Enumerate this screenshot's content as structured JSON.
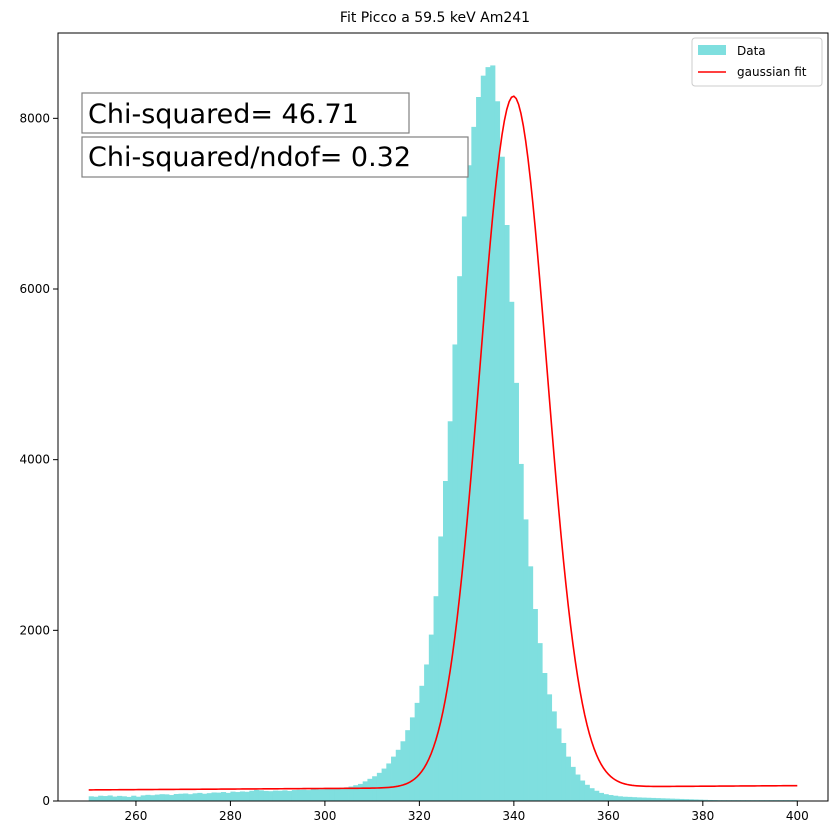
{
  "chart_data": {
    "type": "bar",
    "title": "Fit Picco a 59.5 keV Am241",
    "xlabel": "",
    "ylabel": "",
    "xlim": [
      243.5,
      406.5
    ],
    "ylim": [
      0,
      9000
    ],
    "xticks": [
      260,
      280,
      300,
      320,
      340,
      360,
      380,
      400
    ],
    "yticks": [
      0,
      2000,
      4000,
      6000,
      8000
    ],
    "grid": false,
    "legend_position": "top-right",
    "histogram": {
      "name": "Data",
      "color": "#7fdfdf",
      "bin_start": 250,
      "bin_width": 1,
      "counts": [
        55,
        50,
        62,
        58,
        65,
        52,
        60,
        55,
        48,
        62,
        50,
        66,
        72,
        68,
        75,
        80,
        78,
        70,
        82,
        85,
        88,
        80,
        90,
        95,
        85,
        92,
        100,
        98,
        105,
        95,
        110,
        105,
        112,
        108,
        120,
        130,
        125,
        118,
        115,
        122,
        120,
        125,
        118,
        128,
        130,
        132,
        128,
        140,
        135,
        138,
        142,
        145,
        150,
        155,
        160,
        170,
        185,
        200,
        230,
        260,
        290,
        330,
        380,
        440,
        520,
        600,
        700,
        830,
        980,
        1150,
        1350,
        1600,
        1950,
        2400,
        3100,
        3750,
        4450,
        5350,
        6150,
        6850,
        7450,
        7900,
        8250,
        8500,
        8600,
        8620,
        8200,
        7550,
        6750,
        5850,
        4900,
        3950,
        3300,
        2750,
        2250,
        1850,
        1500,
        1250,
        1050,
        850,
        680,
        520,
        400,
        310,
        240,
        190,
        150,
        120,
        95,
        80,
        70,
        62,
        55,
        50,
        48,
        45,
        42,
        40,
        38,
        36,
        34,
        32,
        30,
        28,
        26,
        24,
        22,
        20,
        18,
        16,
        14,
        12,
        11,
        10,
        10,
        10,
        10,
        10,
        10,
        10,
        10,
        10,
        10,
        10,
        10,
        10,
        10,
        10,
        10,
        10
      ]
    },
    "series": [
      {
        "name": "gaussian fit",
        "color": "#ff0000",
        "x_start": 250,
        "x_end": 400,
        "step": 0.5,
        "mu": 339.9,
        "sigma": 7.1,
        "amplitude": 8100,
        "background": [
          130,
          180
        ]
      }
    ],
    "annotations": [
      {
        "text": "Chi-squared= 46.71"
      },
      {
        "text": "Chi-squared/ndof= 0.32"
      }
    ]
  }
}
